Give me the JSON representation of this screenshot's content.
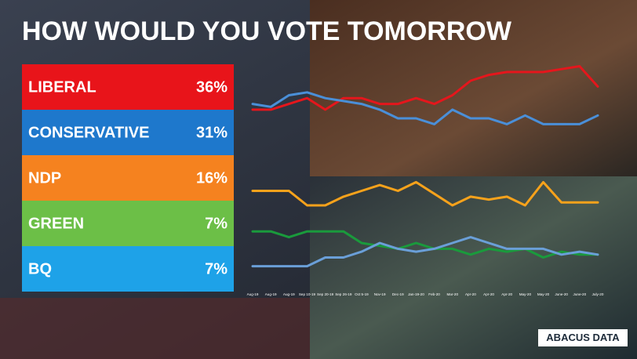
{
  "chart_data": {
    "type": "line",
    "title": "HOW WOULD YOU VOTE TOMORROW",
    "categories": [
      "Aug-19",
      "Aug-19",
      "Aug-19",
      "Sep 10-19",
      "Sep 20-19",
      "Sep 26-19",
      "Oct 5-19",
      "Nov-19",
      "Dec-19",
      "Jan-19-20",
      "Feb-20",
      "Mar-20",
      "Apr-20",
      "Apr-20",
      "Apr-20",
      "May-20",
      "May-20",
      "June-20",
      "June-20",
      "July-20"
    ],
    "ylim": [
      4,
      42
    ],
    "series": [
      {
        "name": "LIBERAL",
        "color": "#e5161c",
        "box_color": "#e8141a",
        "current": 36,
        "current_label": "36%",
        "values": [
          32,
          32,
          33,
          34,
          32,
          34,
          34,
          33,
          33,
          34,
          33,
          34.5,
          37,
          38,
          38.5,
          38.5,
          38.5,
          39,
          39.5,
          36
        ]
      },
      {
        "name": "CONSERVATIVE",
        "color": "#4a8fd8",
        "box_color": "#1e78cc",
        "current": 31,
        "current_label": "31%",
        "values": [
          33,
          32.5,
          34.5,
          35,
          34,
          33.5,
          33,
          32,
          30.5,
          30.5,
          29.5,
          32,
          30.5,
          30.5,
          29.5,
          31,
          29.5,
          29.5,
          29.5,
          31
        ]
      },
      {
        "name": "NDP",
        "color": "#f7a21b",
        "box_color": "#f5821f",
        "current": 16,
        "current_label": "16%",
        "values": [
          18,
          18,
          18,
          15.5,
          15.5,
          17,
          18,
          19,
          18,
          19.5,
          17.5,
          15.5,
          17,
          16.5,
          17,
          15.5,
          19.5,
          16,
          16,
          16
        ]
      },
      {
        "name": "GREEN",
        "color": "#1a9a3c",
        "box_color": "#6cbf47",
        "current": 7,
        "current_label": "7%",
        "values": [
          11,
          11,
          10,
          11,
          11,
          11,
          9,
          8.5,
          8,
          9,
          8,
          8,
          7,
          8,
          7.5,
          8,
          6.5,
          7.5,
          7,
          7
        ]
      },
      {
        "name": "BQ",
        "color": "#6a9fd8",
        "box_color": "#1ea2e8",
        "current": 7,
        "current_label": "7%",
        "values": [
          5,
          5,
          5,
          5,
          6.5,
          6.5,
          7.5,
          9,
          8,
          7.5,
          8,
          9,
          10,
          9,
          8,
          8,
          8,
          7,
          7.5,
          7
        ]
      }
    ],
    "source": "ABACUS DATA"
  }
}
